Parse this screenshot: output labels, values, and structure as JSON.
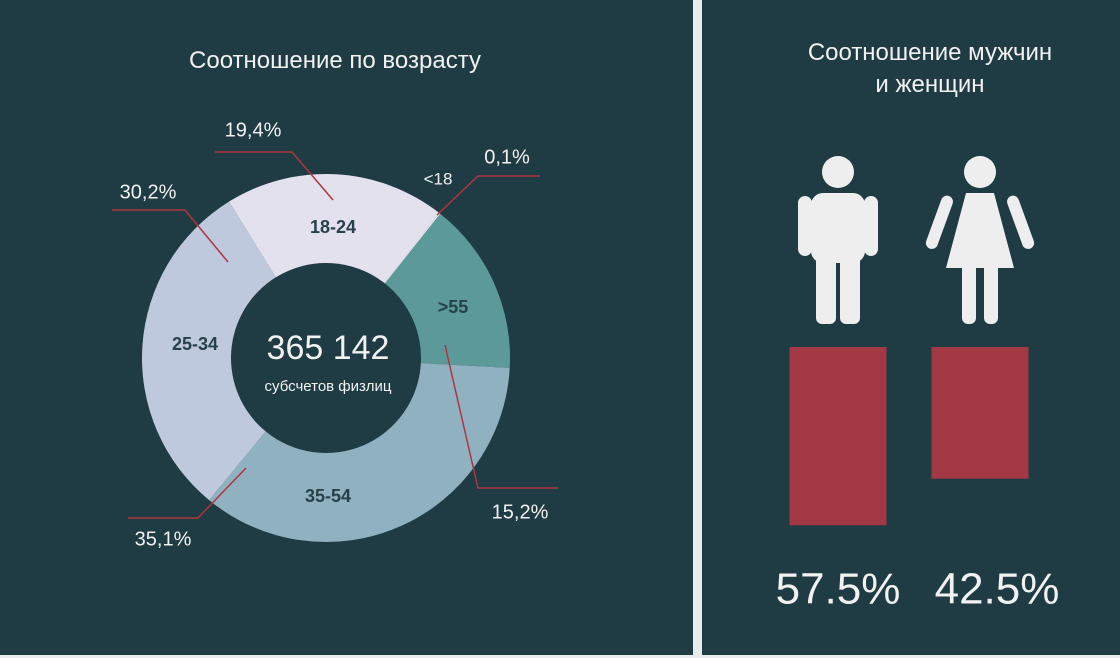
{
  "chart_data": [
    {
      "type": "donut",
      "title": "Соотношение по возрасту",
      "categories": [
        "<18",
        ">55",
        "35-54",
        "25-34",
        "18-24"
      ],
      "values": [
        0.1,
        15.2,
        35.1,
        30.2,
        19.4
      ],
      "value_labels": [
        "0,1%",
        "15,2%",
        "35,1%",
        "30,2%",
        "19,4%"
      ],
      "colors": [
        "#f4f4f8",
        "#5b9a98",
        "#8fb1c0",
        "#bfc9dd",
        "#e3e1ee"
      ],
      "center_label": "365 142",
      "center_sublabel": "субсчетов физлиц"
    },
    {
      "type": "bar",
      "title": "Соотношение мужчин и женщин",
      "categories": [
        null,
        null
      ],
      "values": [
        57.5,
        42.5
      ],
      "value_labels": [
        "57.5%",
        "42.5%"
      ],
      "color": "#a13844"
    }
  ]
}
